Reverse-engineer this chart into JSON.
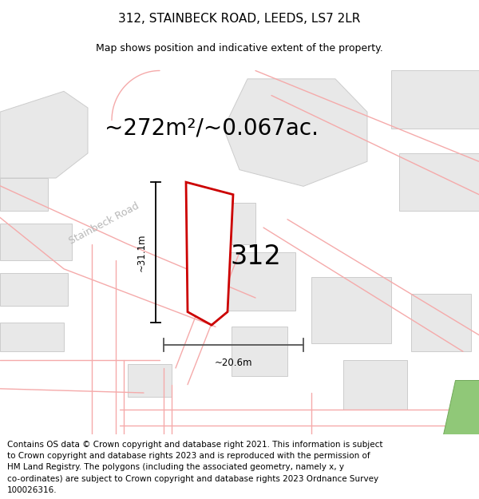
{
  "title": "312, STAINBECK ROAD, LEEDS, LS7 2LR",
  "subtitle": "Map shows position and indicative extent of the property.",
  "area_text": "~272m²/~0.067ac.",
  "label_312": "312",
  "dim_vertical": "~31.1m",
  "dim_horizontal": "~20.6m",
  "road_label": "Stainbeck Road",
  "footer_lines": [
    "Contains OS data © Crown copyright and database right 2021. This information is subject",
    "to Crown copyright and database rights 2023 and is reproduced with the permission of",
    "HM Land Registry. The polygons (including the associated geometry, namely x, y",
    "co-ordinates) are subject to Crown copyright and database rights 2023 Ordnance Survey",
    "100026316."
  ],
  "bg_color": "#ffffff",
  "map_bg": "#ffffff",
  "bld_fc": "#e8e8e8",
  "bld_ec": "#cccccc",
  "road_ec": "#f5aaaa",
  "prop_ec": "#cc0000",
  "green_fc": "#90c878",
  "green_ec": "#70a858",
  "title_fontsize": 11,
  "subtitle_fontsize": 9,
  "area_fontsize": 20,
  "label_fontsize": 24,
  "footer_fontsize": 7.5,
  "road_label_fontsize": 9,
  "dim_fontsize": 8.5
}
